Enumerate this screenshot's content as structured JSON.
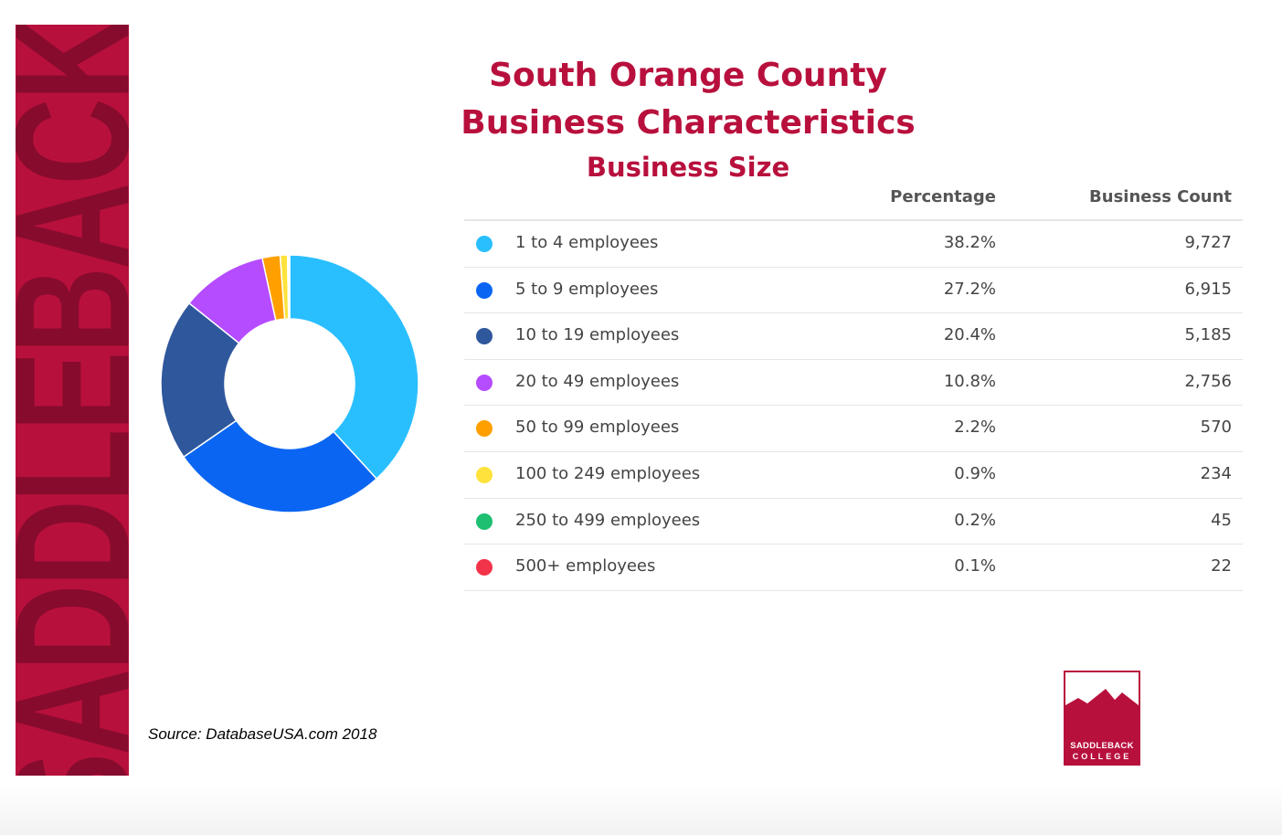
{
  "banner": {
    "word": "SADDLEBACK",
    "color": "#b8103d",
    "text_color": "#870b2d"
  },
  "titles": {
    "line1": "South Orange County",
    "line2": "Business Characteristics",
    "line3": "Business Size"
  },
  "table": {
    "headers": {
      "percentage": "Percentage",
      "count": "Business Count"
    },
    "rows": [
      {
        "label": "1 to 4 employees",
        "percentage": "38.2%",
        "count": "9,727",
        "color": "#29bfff"
      },
      {
        "label": "5 to 9 employees",
        "percentage": "27.2%",
        "count": "6,915",
        "color": "#0a66f2"
      },
      {
        "label": "10 to 19 employees",
        "percentage": "20.4%",
        "count": "5,185",
        "color": "#2f579c"
      },
      {
        "label": "20 to 49 employees",
        "percentage": "10.8%",
        "count": "2,756",
        "color": "#b54cff"
      },
      {
        "label": "50 to 99 employees",
        "percentage": "2.2%",
        "count": "570",
        "color": "#ff9f00"
      },
      {
        "label": "100 to 249 employees",
        "percentage": "0.9%",
        "count": "234",
        "color": "#ffe23b"
      },
      {
        "label": "250 to 499 employees",
        "percentage": "0.2%",
        "count": "45",
        "color": "#1ebf70"
      },
      {
        "label": "500+ employees",
        "percentage": "0.1%",
        "count": "22",
        "color": "#f2334a"
      }
    ]
  },
  "chart_data": {
    "type": "pie",
    "style": "donut",
    "categories": [
      "1 to 4 employees",
      "5 to 9 employees",
      "10 to 19 employees",
      "20 to 49 employees",
      "50 to 99 employees",
      "100 to 249 employees",
      "250 to 499 employees",
      "500+ employees"
    ],
    "values": [
      9727,
      6915,
      5185,
      2756,
      570,
      234,
      45,
      22
    ],
    "percentages": [
      38.2,
      27.2,
      20.4,
      10.8,
      2.2,
      0.9,
      0.2,
      0.1
    ],
    "colors": [
      "#29bfff",
      "#0a66f2",
      "#2f579c",
      "#b54cff",
      "#ff9f00",
      "#ffe23b",
      "#1ebf70",
      "#f2334a"
    ],
    "title": "Business Size",
    "legend": "right (table)"
  },
  "source": "Source: DatabaseUSA.com 2018",
  "logo": {
    "line1": "SADDLEBACK",
    "line2": "COLLEGE",
    "color": "#b8103d"
  }
}
